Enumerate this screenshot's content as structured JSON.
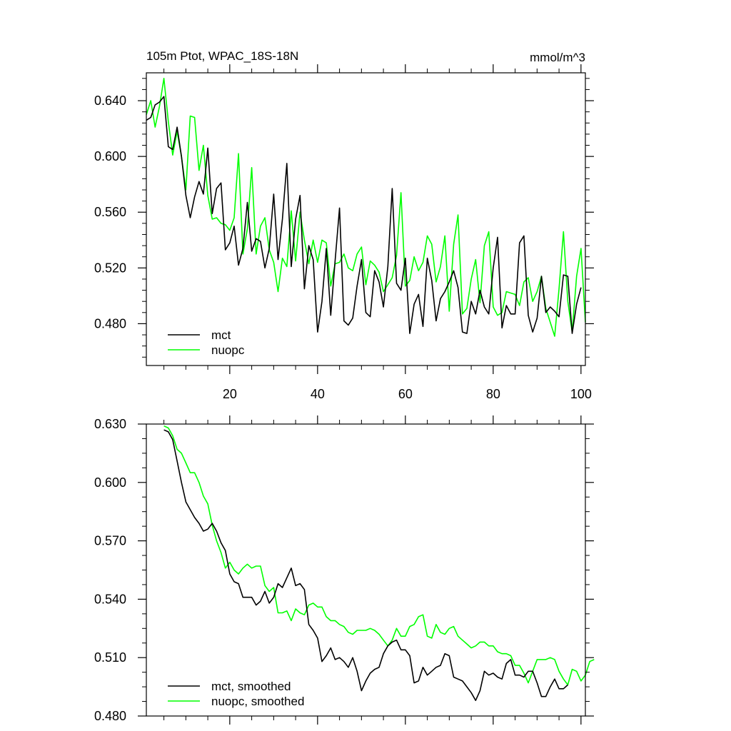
{
  "chart_data": [
    {
      "type": "line",
      "title": "105m Ptot, WPAC_18S-18N",
      "units": "mmol/m^3",
      "xlabel": "",
      "ylabel": "",
      "xlim": [
        1,
        101
      ],
      "ylim": [
        0.45,
        0.66
      ],
      "yticks": [
        0.48,
        0.52,
        0.56,
        0.6,
        0.64
      ],
      "ytick_labels": [
        "0.480",
        "0.520",
        "0.560",
        "0.600",
        "0.640"
      ],
      "xticks": [
        20,
        40,
        60,
        80,
        100
      ],
      "xtick_labels": [
        "20",
        "40",
        "60",
        "80",
        "100"
      ],
      "legend_position": "bottom-left",
      "grid": false,
      "series": [
        {
          "name": "mct",
          "color": "#000000",
          "x_start": 1,
          "values": [
            0.626,
            0.628,
            0.637,
            0.639,
            0.643,
            0.607,
            0.605,
            0.621,
            0.6,
            0.572,
            0.556,
            0.571,
            0.582,
            0.573,
            0.606,
            0.559,
            0.577,
            0.581,
            0.533,
            0.538,
            0.55,
            0.522,
            0.534,
            0.567,
            0.532,
            0.541,
            0.539,
            0.52,
            0.534,
            0.573,
            0.526,
            0.555,
            0.595,
            0.521,
            0.555,
            0.572,
            0.505,
            0.536,
            0.526,
            0.474,
            0.496,
            0.534,
            0.486,
            0.525,
            0.563,
            0.482,
            0.479,
            0.484,
            0.507,
            0.526,
            0.488,
            0.485,
            0.518,
            0.51,
            0.492,
            0.521,
            0.577,
            0.509,
            0.504,
            0.527,
            0.473,
            0.494,
            0.501,
            0.478,
            0.527,
            0.511,
            0.482,
            0.498,
            0.503,
            0.51,
            0.518,
            0.506,
            0.474,
            0.473,
            0.496,
            0.487,
            0.504,
            0.492,
            0.487,
            0.52,
            0.542,
            0.477,
            0.493,
            0.487,
            0.487,
            0.538,
            0.543,
            0.486,
            0.474,
            0.484,
            0.514,
            0.488,
            0.492,
            0.489,
            0.485,
            0.515,
            0.514,
            0.473,
            0.494,
            0.506
          ]
        },
        {
          "name": "nuopc",
          "color": "#00ff00",
          "x_start": 1,
          "values": [
            0.63,
            0.64,
            0.621,
            0.636,
            0.656,
            0.625,
            0.601,
            0.618,
            0.6,
            0.576,
            0.629,
            0.628,
            0.59,
            0.608,
            0.572,
            0.555,
            0.556,
            0.552,
            0.551,
            0.547,
            0.556,
            0.602,
            0.53,
            0.548,
            0.592,
            0.53,
            0.55,
            0.556,
            0.533,
            0.524,
            0.503,
            0.527,
            0.521,
            0.561,
            0.525,
            0.56,
            0.54,
            0.523,
            0.54,
            0.524,
            0.54,
            0.538,
            0.507,
            0.523,
            0.524,
            0.53,
            0.52,
            0.518,
            0.53,
            0.535,
            0.508,
            0.525,
            0.522,
            0.517,
            0.503,
            0.508,
            0.513,
            0.529,
            0.574,
            0.507,
            0.511,
            0.528,
            0.518,
            0.524,
            0.543,
            0.537,
            0.51,
            0.521,
            0.543,
            0.489,
            0.537,
            0.558,
            0.487,
            0.491,
            0.512,
            0.526,
            0.495,
            0.536,
            0.546,
            0.492,
            0.486,
            0.488,
            0.503,
            0.502,
            0.501,
            0.493,
            0.51,
            0.513,
            0.496,
            0.503,
            0.514,
            0.491,
            0.481,
            0.471,
            0.505,
            0.546,
            0.496,
            0.474,
            0.514,
            0.534,
            0.481
          ]
        }
      ]
    },
    {
      "type": "line",
      "title": "",
      "xlabel": "",
      "ylabel": "",
      "xlim": [
        1,
        101
      ],
      "ylim": [
        0.48,
        0.63
      ],
      "yticks": [
        0.48,
        0.51,
        0.54,
        0.57,
        0.6,
        0.63
      ],
      "ytick_labels": [
        "0.480",
        "0.510",
        "0.540",
        "0.570",
        "0.600",
        "0.630"
      ],
      "xticks": [
        20,
        40,
        60,
        80,
        100
      ],
      "legend_position": "bottom-left",
      "grid": false,
      "series": [
        {
          "name": "mct, smoothed",
          "color": "#000000",
          "x_start": 5,
          "values": [
            0.627,
            0.626,
            0.622,
            0.611,
            0.6,
            0.59,
            0.586,
            0.582,
            0.579,
            0.575,
            0.576,
            0.579,
            0.575,
            0.569,
            0.565,
            0.553,
            0.549,
            0.548,
            0.541,
            0.541,
            0.541,
            0.537,
            0.539,
            0.544,
            0.538,
            0.541,
            0.548,
            0.546,
            0.551,
            0.556,
            0.547,
            0.548,
            0.545,
            0.527,
            0.524,
            0.52,
            0.508,
            0.511,
            0.515,
            0.509,
            0.51,
            0.508,
            0.505,
            0.51,
            0.503,
            0.493,
            0.498,
            0.502,
            0.504,
            0.505,
            0.512,
            0.516,
            0.518,
            0.519,
            0.514,
            0.514,
            0.511,
            0.497,
            0.498,
            0.505,
            0.501,
            0.503,
            0.505,
            0.506,
            0.512,
            0.511,
            0.5,
            0.499,
            0.498,
            0.495,
            0.492,
            0.488,
            0.493,
            0.503,
            0.501,
            0.502,
            0.5,
            0.499,
            0.507,
            0.509,
            0.501,
            0.501,
            0.5,
            0.503,
            0.503,
            0.497,
            0.49,
            0.49,
            0.495,
            0.499,
            0.494,
            0.494,
            0.496
          ]
        },
        {
          "name": "nuopc, smoothed",
          "color": "#00ff00",
          "x_start": 5,
          "values": [
            0.629,
            0.628,
            0.624,
            0.617,
            0.615,
            0.61,
            0.605,
            0.605,
            0.6,
            0.593,
            0.589,
            0.578,
            0.57,
            0.564,
            0.556,
            0.559,
            0.555,
            0.553,
            0.556,
            0.558,
            0.556,
            0.557,
            0.557,
            0.547,
            0.544,
            0.546,
            0.533,
            0.533,
            0.534,
            0.529,
            0.535,
            0.533,
            0.532,
            0.537,
            0.538,
            0.536,
            0.536,
            0.531,
            0.529,
            0.529,
            0.527,
            0.526,
            0.523,
            0.522,
            0.524,
            0.524,
            0.524,
            0.525,
            0.524,
            0.522,
            0.519,
            0.516,
            0.519,
            0.525,
            0.521,
            0.521,
            0.526,
            0.527,
            0.531,
            0.532,
            0.521,
            0.52,
            0.527,
            0.523,
            0.522,
            0.525,
            0.526,
            0.521,
            0.519,
            0.517,
            0.515,
            0.516,
            0.518,
            0.518,
            0.516,
            0.516,
            0.513,
            0.512,
            0.512,
            0.511,
            0.506,
            0.506,
            0.502,
            0.497,
            0.503,
            0.509,
            0.509,
            0.509,
            0.51,
            0.509,
            0.503,
            0.499,
            0.496,
            0.504,
            0.503,
            0.498,
            0.501,
            0.508,
            0.509
          ]
        }
      ]
    }
  ]
}
